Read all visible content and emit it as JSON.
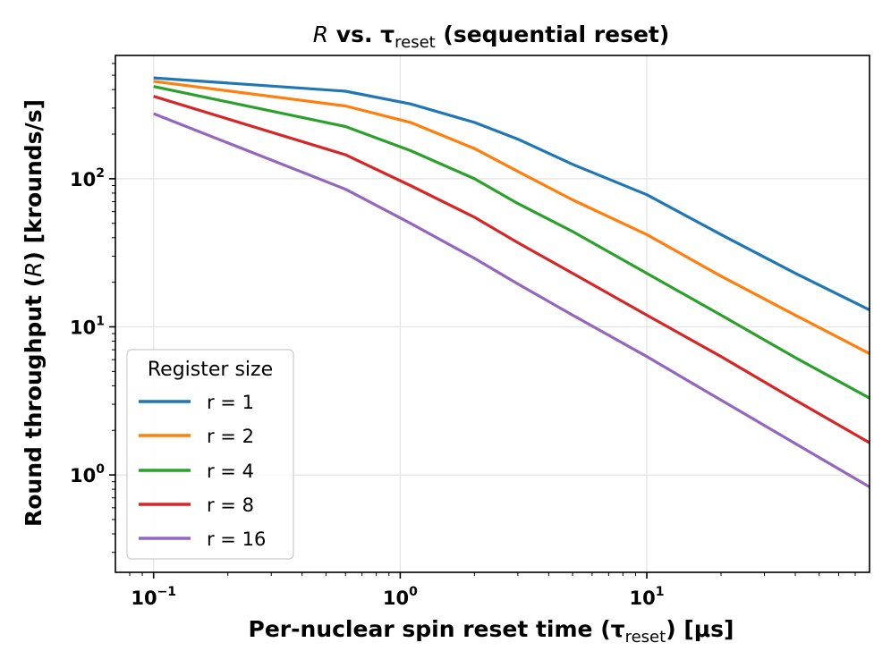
{
  "chart_data": {
    "type": "line",
    "title": {
      "prefix": "R",
      "middle": " vs. τ",
      "subscript": "reset",
      "suffix": " (sequential reset)"
    },
    "xlabel": {
      "prefix": "Per-nuclear spin reset time (τ",
      "subscript": "reset",
      "suffix": ") [μs]"
    },
    "ylabel": {
      "prefix": "Round throughput (",
      "italic": "R",
      "suffix": ") [krounds/s]"
    },
    "x_scale": "log",
    "y_scale": "log",
    "xlim": [
      0.07,
      80
    ],
    "ylim": [
      0.22,
      680
    ],
    "x_ticks": [
      {
        "value": 0.1,
        "base": "10",
        "exp": "−1"
      },
      {
        "value": 1,
        "base": "10",
        "exp": "0"
      },
      {
        "value": 10,
        "base": "10",
        "exp": "1"
      }
    ],
    "y_ticks": [
      {
        "value": 1,
        "base": "10",
        "exp": "0"
      },
      {
        "value": 10,
        "base": "10",
        "exp": "1"
      },
      {
        "value": 100,
        "base": "10",
        "exp": "2"
      }
    ],
    "grid": true,
    "legend": {
      "title": "Register size",
      "location": "lower-left"
    },
    "series": [
      {
        "name": "r = 1",
        "color": "#1f77b4",
        "points": [
          [
            0.1,
            480
          ],
          [
            0.6,
            390
          ],
          [
            1.1,
            320
          ],
          [
            2,
            240
          ],
          [
            3,
            185
          ],
          [
            5,
            125
          ],
          [
            10,
            78
          ],
          [
            20,
            42
          ],
          [
            40,
            23
          ],
          [
            80,
            13
          ]
        ]
      },
      {
        "name": "r = 2",
        "color": "#ff7f0e",
        "points": [
          [
            0.1,
            455
          ],
          [
            0.6,
            310
          ],
          [
            1.1,
            240
          ],
          [
            2,
            160
          ],
          [
            3,
            112
          ],
          [
            5,
            72
          ],
          [
            10,
            42
          ],
          [
            20,
            22
          ],
          [
            40,
            12
          ],
          [
            80,
            6.6
          ]
        ]
      },
      {
        "name": "r = 4",
        "color": "#2ca02c",
        "points": [
          [
            0.1,
            420
          ],
          [
            0.6,
            225
          ],
          [
            1.1,
            155
          ],
          [
            2,
            100
          ],
          [
            3,
            68
          ],
          [
            5,
            44
          ],
          [
            10,
            23
          ],
          [
            20,
            12
          ],
          [
            40,
            6.2
          ],
          [
            80,
            3.3
          ]
        ]
      },
      {
        "name": "r = 8",
        "color": "#d62728",
        "points": [
          [
            0.1,
            360
          ],
          [
            0.6,
            145
          ],
          [
            1.1,
            90
          ],
          [
            2,
            55
          ],
          [
            3,
            37
          ],
          [
            5,
            23
          ],
          [
            10,
            12
          ],
          [
            20,
            6.3
          ],
          [
            40,
            3.2
          ],
          [
            80,
            1.65
          ]
        ]
      },
      {
        "name": "r = 16",
        "color": "#9467bd",
        "points": [
          [
            0.1,
            275
          ],
          [
            0.6,
            85
          ],
          [
            1.1,
            50
          ],
          [
            2,
            29
          ],
          [
            3,
            19.5
          ],
          [
            5,
            12
          ],
          [
            10,
            6.3
          ],
          [
            20,
            3.2
          ],
          [
            40,
            1.63
          ],
          [
            80,
            0.83
          ]
        ]
      }
    ]
  }
}
